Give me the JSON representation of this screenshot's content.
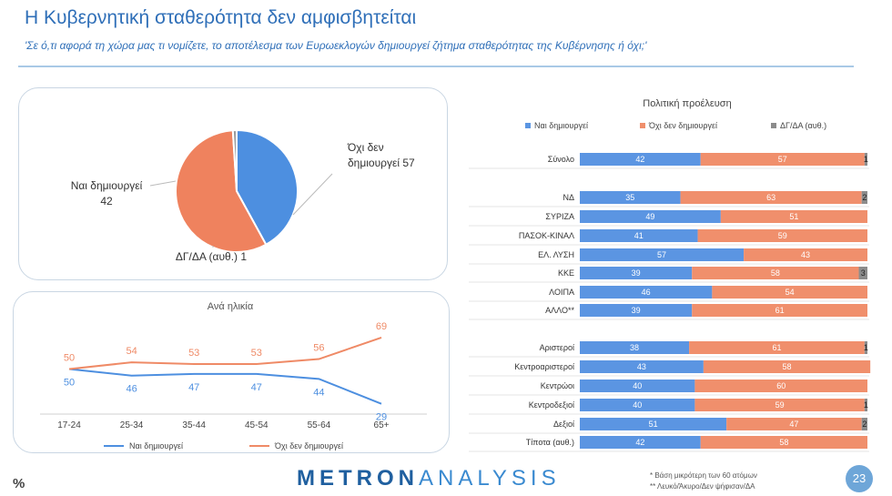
{
  "header": {
    "title": "Η Κυβερνητική σταθερότητα δεν αμφισβητείται",
    "subtitle": "'Σε ό,τι αφορά τη χώρα μας τι νομίζετε, το αποτέλεσμα των Ευρωεκλογών δημιουργεί ζήτημα σταθερότητας της Κυβέρνησης ή όχι;'"
  },
  "colors": {
    "yes": "#5b95e2",
    "no": "#f08f6c",
    "dk": "#8c8c8c",
    "title": "#2f6fb8"
  },
  "chart_data": [
    {
      "type": "pie",
      "slices": [
        {
          "label_lines": [
            "Ναι δημιουργεί",
            "42"
          ],
          "value": 42,
          "color": "#4d8fe0"
        },
        {
          "label_lines": [
            "Όχι δεν",
            "δημιουργεί 57"
          ],
          "value": 57,
          "color": "#ef825e"
        },
        {
          "label_lines": [
            "ΔΓ/ΔΑ (αυθ.) 1"
          ],
          "value": 1,
          "color": "#9a9a9a"
        }
      ]
    },
    {
      "type": "line",
      "title": "Ανά ηλικία",
      "categories": [
        "17-24",
        "25-34",
        "35-44",
        "45-54",
        "55-64",
        "65+"
      ],
      "ylim": [
        20,
        75
      ],
      "series": [
        {
          "name": "Ναι δημιουργεί",
          "values": [
            50,
            46,
            47,
            47,
            44,
            29
          ],
          "color": "#4d8fe0"
        },
        {
          "name": "Όχι δεν δημιουργεί",
          "values": [
            50,
            54,
            53,
            53,
            56,
            69
          ],
          "color": "#ef8a66"
        }
      ]
    },
    {
      "type": "bar",
      "stacked": true,
      "orientation": "horizontal",
      "title": "Πολιτική προέλευση",
      "series_names": [
        "Ναι δημιουργεί",
        "Όχι δεν δημιουργεί",
        "ΔΓ/ΔΑ (αυθ.)"
      ],
      "rows": [
        {
          "label": "Σύνολο",
          "values": [
            42,
            57,
            1
          ],
          "group": 0
        },
        {
          "label": "ΝΔ",
          "values": [
            35,
            63,
            2
          ],
          "group": 1
        },
        {
          "label": "ΣΥΡΙΖΑ",
          "values": [
            49,
            51,
            0
          ],
          "group": 1
        },
        {
          "label": "ΠΑΣΟΚ-ΚΙΝΑΛ",
          "values": [
            41,
            59,
            0
          ],
          "group": 1
        },
        {
          "label": "ΕΛ. ΛΥΣΗ",
          "values": [
            57,
            43,
            0
          ],
          "group": 1
        },
        {
          "label": "ΚΚΕ",
          "values": [
            39,
            58,
            3
          ],
          "group": 1
        },
        {
          "label": "ΛΟΙΠΑ",
          "values": [
            46,
            54,
            0
          ],
          "group": 1
        },
        {
          "label": "ΑΛΛΟ**",
          "values": [
            39,
            61,
            0
          ],
          "group": 1
        },
        {
          "label": "Αριστεροί",
          "values": [
            38,
            61,
            1
          ],
          "group": 2
        },
        {
          "label": "Κεντροαριστεροί",
          "values": [
            43,
            58,
            0
          ],
          "group": 2
        },
        {
          "label": "Κεντρώοι",
          "values": [
            40,
            60,
            0
          ],
          "group": 2
        },
        {
          "label": "Κεντροδεξιοί",
          "values": [
            40,
            59,
            1
          ],
          "group": 2
        },
        {
          "label": "Δεξιοί",
          "values": [
            51,
            47,
            2
          ],
          "group": 2
        },
        {
          "label": "Τίποτα (αυθ.)",
          "values": [
            42,
            58,
            0
          ],
          "group": 2
        }
      ]
    }
  ],
  "footer": {
    "percent": "%",
    "logo_a": "METRON",
    "logo_b": "ANALYSIS",
    "note1": "*  Βάση μικρότερη των 60 ατόμων",
    "note2": "** Λευκό/Άκυρο/Δεν ψήφισαν/ΔΑ",
    "page": "23"
  }
}
